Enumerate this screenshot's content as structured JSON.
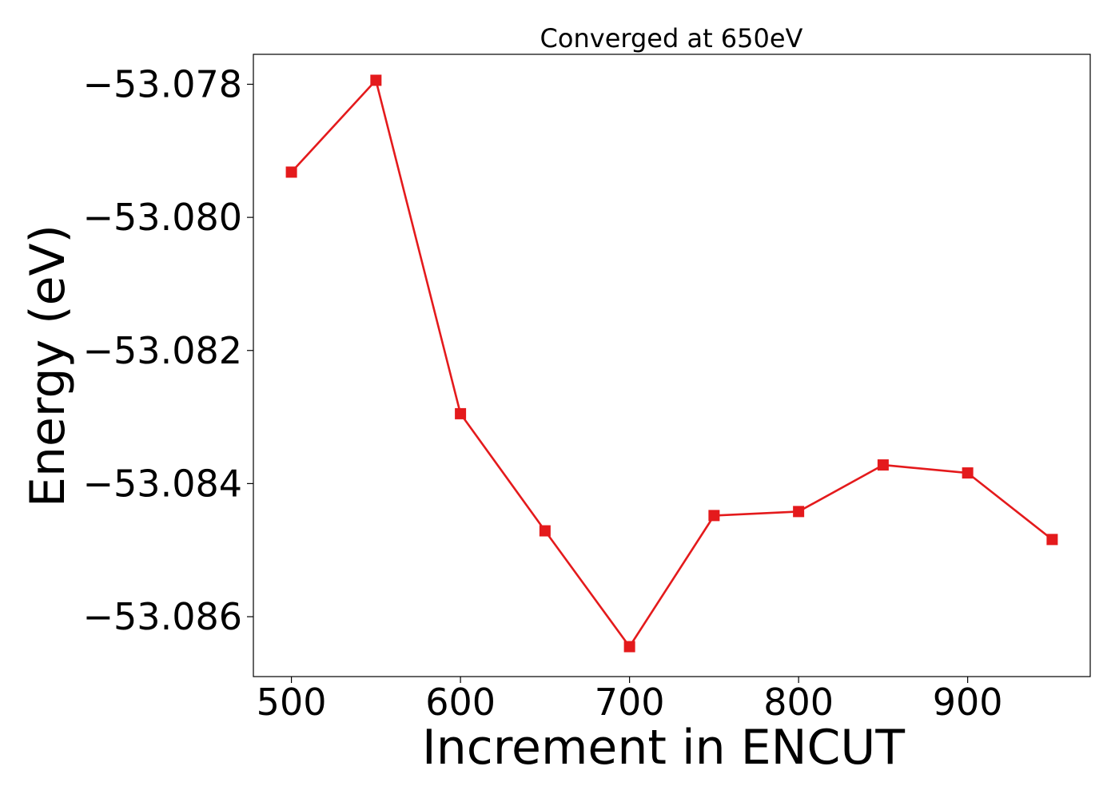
{
  "chart_data": {
    "type": "line",
    "title": "Converged at 650eV",
    "xlabel": "Increment in ENCUT",
    "ylabel": "Energy (eV)",
    "x": [
      500,
      550,
      600,
      650,
      700,
      750,
      800,
      850,
      900,
      950
    ],
    "series": [
      {
        "values": [
          -53.07932,
          -53.07794,
          -53.08295,
          -53.08471,
          -53.08645,
          -53.08448,
          -53.08442,
          -53.08372,
          -53.08384,
          -53.08484
        ]
      }
    ],
    "xlim": [
      477.5,
      972.5
    ],
    "ylim": [
      -53.0869,
      -53.07755
    ],
    "xticks": [
      500,
      600,
      700,
      800,
      900
    ],
    "xtick_labels": [
      "500",
      "600",
      "700",
      "800",
      "900"
    ],
    "yticks": [
      -53.078,
      -53.08,
      -53.082,
      -53.084,
      -53.086
    ],
    "ytick_labels": [
      "−53.078",
      "−53.080",
      "−53.082",
      "−53.084",
      "−53.086"
    ],
    "marker": "square",
    "line_color": "#e41a1c",
    "grid": false,
    "legend": "none"
  }
}
